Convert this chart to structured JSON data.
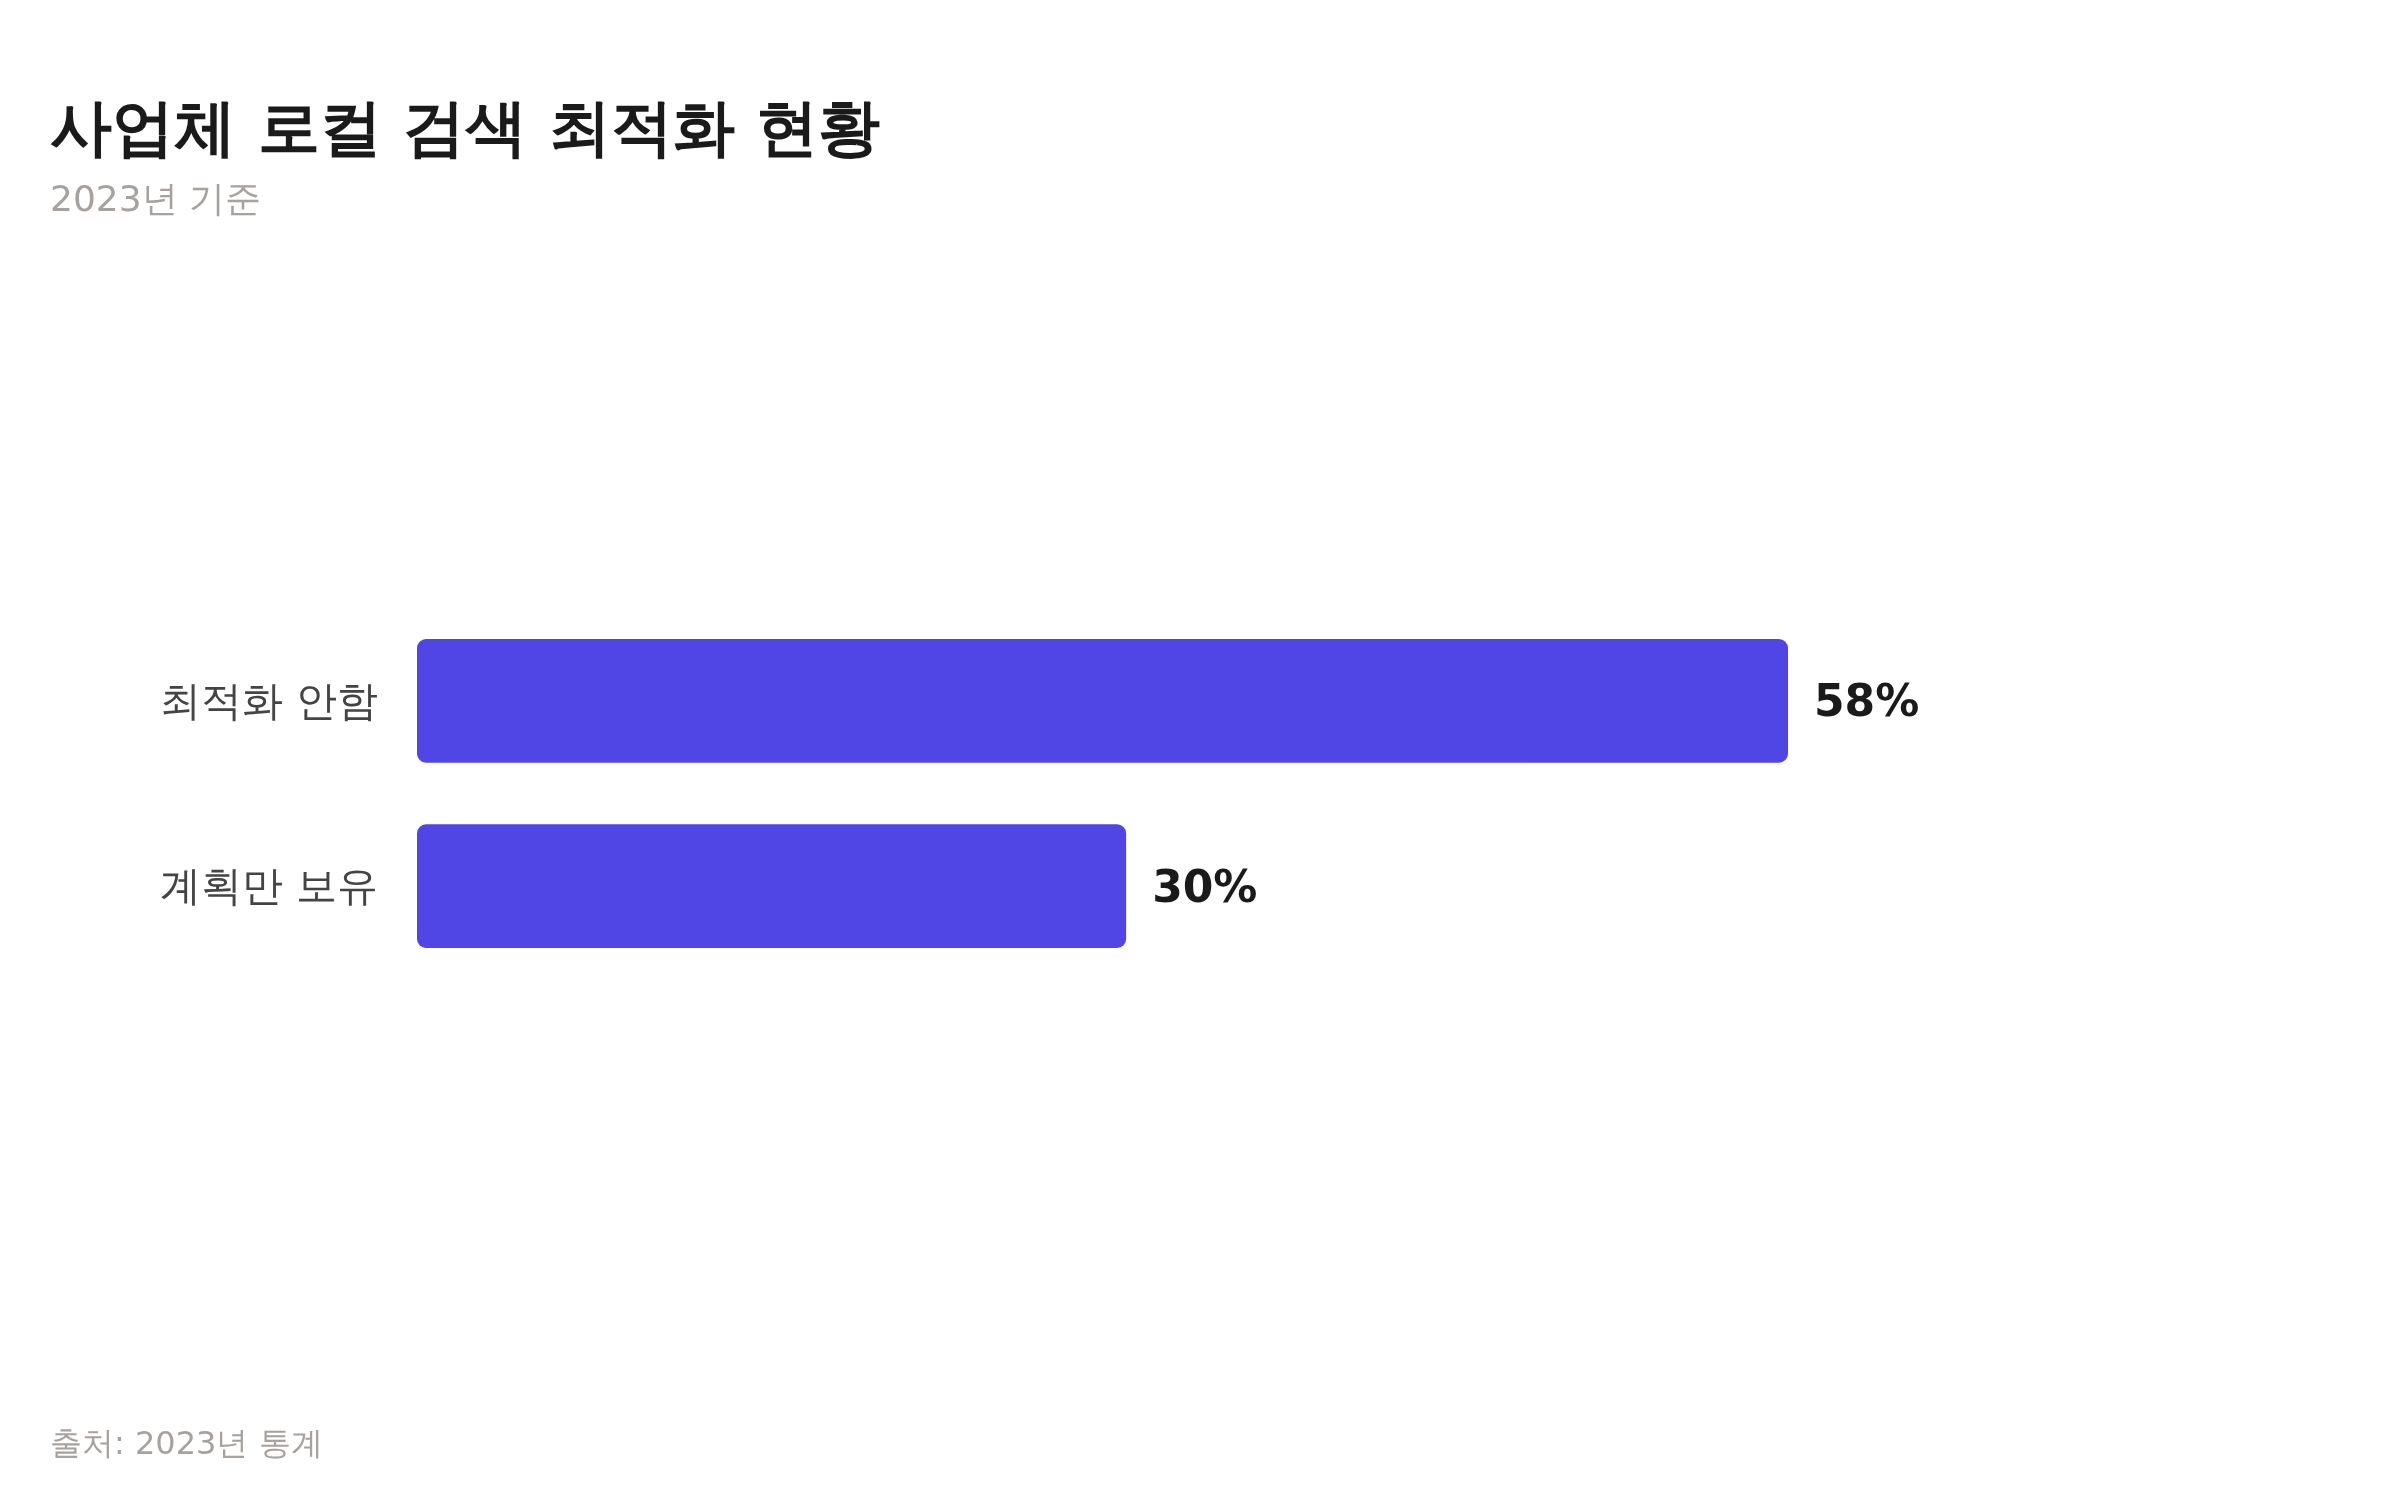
{
  "chart_data": {
    "type": "bar",
    "orientation": "horizontal",
    "title": "사업체 로컬 검색 최적화 현황",
    "subtitle": "2023년 기준",
    "categories": [
      "최적화 안함",
      "계획만 보유"
    ],
    "values": [
      58,
      30
    ],
    "value_labels": [
      "58%",
      "30%"
    ],
    "color": "#5046e5",
    "annotations": [
      "출처: 2023년 통계"
    ]
  }
}
